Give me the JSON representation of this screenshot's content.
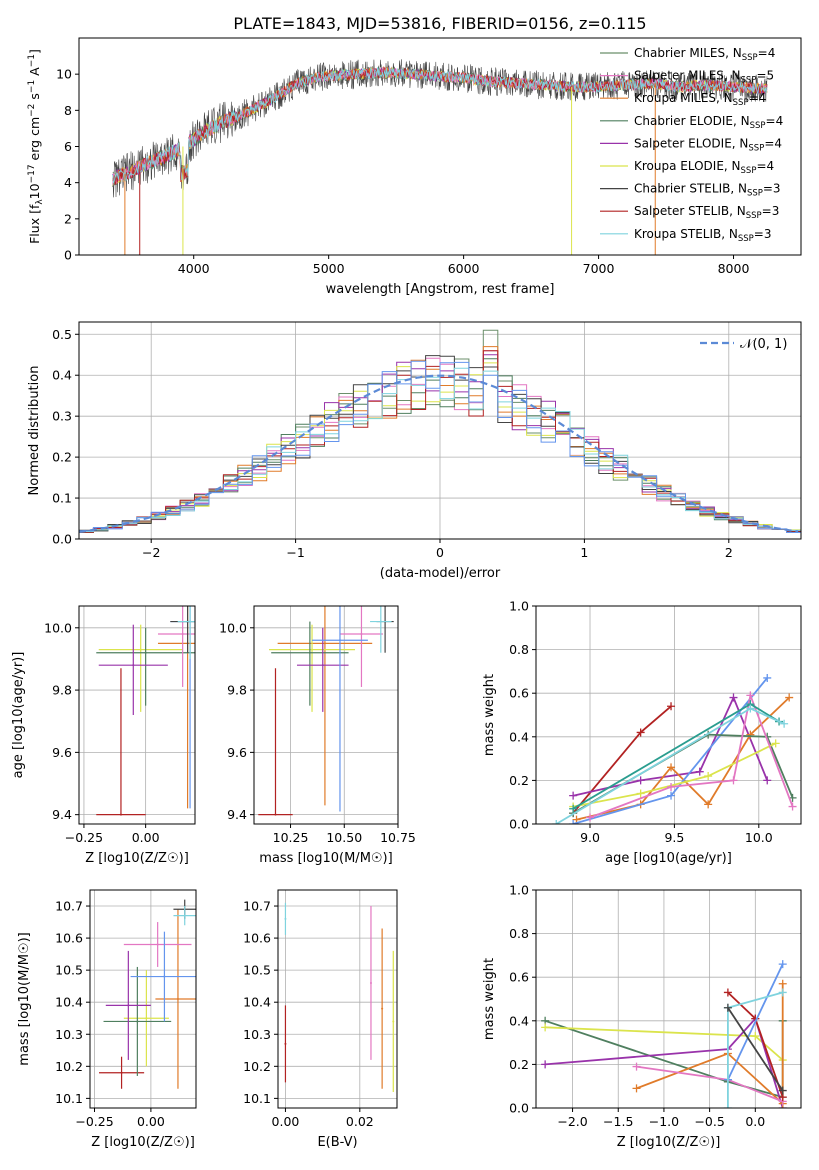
{
  "figure_title": "PLATE=1843, MJD=53816, FIBERID=0156, z=0.115",
  "model_colors": [
    "#6b8f6b",
    "#e377c2",
    "#e07b2a",
    "#4f7f5f",
    "#9933aa",
    "#dbe44c",
    "#444444",
    "#b22222",
    "#7fd3de"
  ],
  "chart_data": [
    {
      "panel": "spectrum",
      "type": "line",
      "title": "PLATE=1843, MJD=53816, FIBERID=0156, z=0.115",
      "xlabel": "wavelength [Angstrom, rest frame]",
      "ylabel": "Flux [f_λ10^-17 erg cm^-2 s^-1 A^-1]",
      "xlim": [
        3150,
        8500
      ],
      "ylim": [
        0,
        12
      ],
      "xticks": [
        4000,
        5000,
        6000,
        7000,
        8000
      ],
      "yticks": [
        0,
        2,
        4,
        6,
        8,
        10
      ],
      "grid": false,
      "legend_position": "right",
      "spectrum_envelope": {
        "x": [
          3400,
          3500,
          3600,
          3700,
          3800,
          3900,
          4000,
          4100,
          4200,
          4300,
          4400,
          4500,
          4600,
          4700,
          4800,
          4900,
          5000,
          5200,
          5400,
          5600,
          5800,
          6000,
          6200,
          6400,
          6600,
          6800,
          7000,
          7200,
          7400,
          7600,
          7800,
          8000,
          8250
        ],
        "y": [
          4.2,
          4.5,
          4.9,
          5.2,
          5.5,
          5.9,
          6.4,
          6.9,
          7.3,
          7.6,
          7.9,
          8.3,
          8.7,
          9.2,
          9.6,
          9.8,
          9.9,
          10.0,
          10.1,
          10.0,
          9.9,
          9.8,
          9.6,
          9.5,
          9.4,
          9.3,
          9.3,
          9.4,
          9.5,
          9.3,
          9.4,
          9.3,
          9.2
        ]
      },
      "x_range": [
        3400,
        8250
      ],
      "series": [
        {
          "name": "Chabrier MILES, N_SSP=4",
          "label_main": "Chabrier MILES, N",
          "label_sub": "SSP",
          "label_end": "=4",
          "color": "#6b8f6b"
        },
        {
          "name": "Salpeter MILES, N_SSP=5",
          "label_main": "Salpeter MILES, N",
          "label_sub": "SSP",
          "label_end": "=5",
          "color": "#e377c2"
        },
        {
          "name": "Kroupa MILES, N_SSP=4",
          "label_main": "Kroupa MILES, N",
          "label_sub": "SSP",
          "label_end": "=4",
          "color": "#e07b2a"
        },
        {
          "name": "Chabrier ELODIE, N_SSP=4",
          "label_main": "Chabrier ELODIE, N",
          "label_sub": "SSP",
          "label_end": "=4",
          "color": "#4f7f5f"
        },
        {
          "name": "Salpeter ELODIE, N_SSP=4",
          "label_main": "Salpeter ELODIE, N",
          "label_sub": "SSP",
          "label_end": "=4",
          "color": "#9933aa"
        },
        {
          "name": "Kroupa ELODIE, N_SSP=4",
          "label_main": "Kroupa ELODIE, N",
          "label_sub": "SSP",
          "label_end": "=4",
          "color": "#dbe44c"
        },
        {
          "name": "Chabrier STELIB, N_SSP=3",
          "label_main": "Chabrier STELIB, N",
          "label_sub": "SSP",
          "label_end": "=3",
          "color": "#444444"
        },
        {
          "name": "Salpeter STELIB, N_SSP=3",
          "label_main": "Salpeter STELIB, N",
          "label_sub": "SSP",
          "label_end": "=3",
          "color": "#b22222"
        },
        {
          "name": "Kroupa STELIB, N_SSP=3",
          "label_main": "Kroupa STELIB, N",
          "label_sub": "SSP",
          "label_end": "=3",
          "color": "#7fd3de"
        }
      ]
    },
    {
      "panel": "residuals",
      "type": "line",
      "xlabel": "(data-model)/error",
      "ylabel": "Normed distribution",
      "xlim": [
        -2.5,
        2.5
      ],
      "ylim": [
        0,
        0.53
      ],
      "xticks": [
        -2,
        -1,
        0,
        1,
        2
      ],
      "yticks": [
        0.0,
        0.1,
        0.2,
        0.3,
        0.4,
        0.5
      ],
      "grid": true,
      "legend_position": "top-right",
      "legend_label": "𝒩(0, 1)",
      "bin_width": 0.1,
      "reference_curve": {
        "name": "N(0,1)",
        "style": "dashed",
        "color": "#5b8ad6",
        "mean": 0,
        "sigma": 1
      },
      "histogram_series_colors": [
        "#6b8f6b",
        "#e377c2",
        "#e07b2a",
        "#4f7f5f",
        "#9933aa",
        "#dbe44c",
        "#444444",
        "#b22222",
        "#7fd3de",
        "#6495ed"
      ],
      "peak_values": [
        0.51,
        0.46,
        0.47,
        0.44,
        0.45,
        0.43,
        0.42,
        0.46,
        0.41,
        0.4
      ]
    },
    {
      "panel": "Z_vs_age",
      "type": "scatter",
      "xlabel": "Z [log10(Z/Z☉)]",
      "ylabel": "age [log10(age/yr)]",
      "xlim": [
        -0.27,
        0.2
      ],
      "ylim": [
        9.37,
        10.07
      ],
      "xticks": [
        -0.25,
        0.0
      ],
      "yticks": [
        9.4,
        9.6,
        9.8,
        10.0
      ],
      "grid": true,
      "points": [
        {
          "x": -0.1,
          "y": 9.4,
          "xerr": 0.1,
          "yerr_low": 0.0,
          "yerr_high": 0.47,
          "color": "#b22222"
        },
        {
          "x": 0.17,
          "y": 9.95,
          "xerr": 0.12,
          "yerr_low": 0.53,
          "yerr_high": 0.12,
          "color": "#e07b2a"
        },
        {
          "x": -0.02,
          "y": 9.93,
          "xerr": 0.17,
          "yerr_low": 0.2,
          "yerr_high": 0.08,
          "color": "#dbe44c"
        },
        {
          "x": 0.0,
          "y": 9.92,
          "xerr": 0.2,
          "yerr_low": 0.17,
          "yerr_high": 0.08,
          "color": "#4f7f5f"
        },
        {
          "x": -0.05,
          "y": 9.88,
          "xerr": 0.14,
          "yerr_low": 0.16,
          "yerr_high": 0.13,
          "color": "#9933aa"
        },
        {
          "x": 0.15,
          "y": 9.98,
          "xerr": 0.1,
          "yerr_low": 0.17,
          "yerr_high": 0.12,
          "color": "#e377c2"
        },
        {
          "x": 0.18,
          "y": 10.02,
          "xerr": 0.08,
          "yerr_low": 0.6,
          "yerr_high": 0.08,
          "color": "#6495ed"
        },
        {
          "x": 0.17,
          "y": 10.02,
          "xerr": 0.07,
          "yerr_low": 0.1,
          "yerr_high": 0.05,
          "color": "#444444"
        },
        {
          "x": 0.18,
          "y": 10.02,
          "xerr": 0.05,
          "yerr_low": 0.12,
          "yerr_high": 0.05,
          "color": "#7fd3de"
        }
      ]
    },
    {
      "panel": "mass_vs_age",
      "type": "scatter",
      "xlabel": "mass [log10(M/M☉)]",
      "xlim": [
        10.08,
        10.75
      ],
      "ylim": [
        9.37,
        10.07
      ],
      "xticks": [
        10.25,
        10.5,
        10.75
      ],
      "yticks": [
        9.4,
        9.6,
        9.8,
        10.0
      ],
      "grid": true,
      "points": [
        {
          "x": 10.18,
          "y": 9.4,
          "xerr": 0.08,
          "yerr_low": 0.0,
          "yerr_high": 0.47,
          "color": "#b22222"
        },
        {
          "x": 10.41,
          "y": 9.95,
          "xerr": 0.22,
          "yerr_low": 0.52,
          "yerr_high": 0.12,
          "color": "#e07b2a"
        },
        {
          "x": 10.35,
          "y": 9.93,
          "xerr": 0.2,
          "yerr_low": 0.2,
          "yerr_high": 0.08,
          "color": "#dbe44c"
        },
        {
          "x": 10.34,
          "y": 9.92,
          "xerr": 0.18,
          "yerr_low": 0.17,
          "yerr_high": 0.1,
          "color": "#4f7f5f"
        },
        {
          "x": 10.4,
          "y": 9.88,
          "xerr": 0.12,
          "yerr_low": 0.15,
          "yerr_high": 0.12,
          "color": "#9933aa"
        },
        {
          "x": 10.58,
          "y": 9.98,
          "xerr": 0.1,
          "yerr_low": 0.17,
          "yerr_high": 0.12,
          "color": "#e377c2"
        },
        {
          "x": 10.48,
          "y": 9.96,
          "xerr": 0.13,
          "yerr_low": 0.55,
          "yerr_high": 0.12,
          "color": "#6495ed"
        },
        {
          "x": 10.69,
          "y": 10.02,
          "xerr": 0.04,
          "yerr_low": 0.1,
          "yerr_high": 0.05,
          "color": "#444444"
        },
        {
          "x": 10.67,
          "y": 10.02,
          "xerr": 0.05,
          "yerr_low": 0.1,
          "yerr_high": 0.05,
          "color": "#7fd3de"
        }
      ]
    },
    {
      "panel": "age_vs_weight",
      "type": "line",
      "xlabel": "age [log10(age/yr)]",
      "ylabel": "mass weight",
      "xlim": [
        8.68,
        10.25
      ],
      "ylim": [
        0,
        1
      ],
      "xticks": [
        9.0,
        9.5,
        10.0
      ],
      "yticks": [
        0.0,
        0.2,
        0.4,
        0.6,
        0.8,
        1.0
      ],
      "grid": true,
      "series": [
        {
          "color": "#b22222",
          "x": [
            8.9,
            9.3,
            9.48
          ],
          "y": [
            0.05,
            0.42,
            0.54
          ]
        },
        {
          "color": "#9933aa",
          "x": [
            8.9,
            9.3,
            9.65,
            9.85,
            10.05
          ],
          "y": [
            0.13,
            0.2,
            0.24,
            0.58,
            0.2
          ]
        },
        {
          "color": "#e07b2a",
          "x": [
            8.92,
            9.3,
            9.48,
            9.7,
            9.95,
            10.18
          ],
          "y": [
            0.02,
            0.09,
            0.26,
            0.09,
            0.41,
            0.58
          ]
        },
        {
          "color": "#6495ed",
          "x": [
            8.9,
            9.48,
            10.05
          ],
          "y": [
            0.0,
            0.13,
            0.67
          ]
        },
        {
          "color": "#4f7f5f",
          "x": [
            8.9,
            9.7,
            10.05,
            10.2
          ],
          "y": [
            0.05,
            0.41,
            0.4,
            0.12
          ]
        },
        {
          "color": "#dbe44c",
          "x": [
            8.9,
            9.3,
            9.7,
            10.1
          ],
          "y": [
            0.08,
            0.14,
            0.22,
            0.37
          ]
        },
        {
          "color": "#e377c2",
          "x": [
            9.0,
            9.48,
            9.85,
            9.95,
            10.2
          ],
          "y": [
            0.03,
            0.17,
            0.2,
            0.59,
            0.08
          ]
        },
        {
          "color": "#2a9d8f",
          "x": [
            8.9,
            9.95,
            10.12
          ],
          "y": [
            0.07,
            0.55,
            0.47
          ]
        },
        {
          "color": "#7fd3de",
          "x": [
            8.8,
            9.95,
            10.15
          ],
          "y": [
            0.0,
            0.53,
            0.46
          ]
        }
      ]
    },
    {
      "panel": "Z_vs_mass",
      "type": "scatter",
      "xlabel": "Z [log10(Z/Z☉)]",
      "ylabel": "mass [log10(M/M☉)]",
      "xlim": [
        -0.27,
        0.2
      ],
      "ylim": [
        10.07,
        10.75
      ],
      "xticks": [
        -0.25,
        0.0
      ],
      "yticks": [
        10.1,
        10.2,
        10.3,
        10.4,
        10.5,
        10.6,
        10.7
      ],
      "grid": true,
      "points": [
        {
          "x": -0.13,
          "y": 10.18,
          "xerr": 0.1,
          "yerr": 0.05,
          "color": "#b22222"
        },
        {
          "x": 0.12,
          "y": 10.41,
          "xerr": 0.1,
          "yerr": 0.28,
          "color": "#e07b2a"
        },
        {
          "x": -0.02,
          "y": 10.35,
          "xerr": 0.1,
          "yerr": 0.15,
          "color": "#dbe44c"
        },
        {
          "x": -0.06,
          "y": 10.34,
          "xerr": 0.15,
          "yerr": 0.17,
          "color": "#4f7f5f"
        },
        {
          "x": -0.1,
          "y": 10.39,
          "xerr": 0.1,
          "yerr": 0.17,
          "color": "#9933aa"
        },
        {
          "x": 0.03,
          "y": 10.58,
          "xerr": 0.15,
          "yerr": 0.07,
          "color": "#e377c2"
        },
        {
          "x": 0.06,
          "y": 10.48,
          "xerr": 0.15,
          "yerr": 0.14,
          "color": "#6495ed"
        },
        {
          "x": 0.15,
          "y": 10.69,
          "xerr": 0.05,
          "yerr": 0.03,
          "color": "#444444"
        },
        {
          "x": 0.15,
          "y": 10.67,
          "xerr": 0.05,
          "yerr": 0.03,
          "color": "#7fd3de"
        }
      ]
    },
    {
      "panel": "ebv_vs_mass",
      "type": "scatter",
      "xlabel": "E(B-V)",
      "xlim": [
        -0.002,
        0.03
      ],
      "ylim": [
        10.07,
        10.75
      ],
      "xticks": [
        0.0,
        0.02
      ],
      "yticks": [
        10.1,
        10.2,
        10.3,
        10.4,
        10.5,
        10.6,
        10.7
      ],
      "grid": true,
      "points": [
        {
          "x": 0.0,
          "y": 10.27,
          "yerr": 0.12,
          "color": "#b22222"
        },
        {
          "x": 0.0,
          "y": 10.66,
          "yerr": 0.05,
          "color": "#7fd3de"
        },
        {
          "x": 0.026,
          "y": 10.38,
          "yerr": 0.25,
          "color": "#e07b2a"
        },
        {
          "x": 0.023,
          "y": 10.46,
          "yerr": 0.24,
          "color": "#e377c2"
        },
        {
          "x": 0.029,
          "y": 10.34,
          "yerr": 0.22,
          "color": "#dbe44c"
        }
      ]
    },
    {
      "panel": "Z_vs_weight",
      "type": "line",
      "xlabel": "Z [log10(Z/Z☉)]",
      "ylabel": "mass weight",
      "xlim": [
        -2.4,
        0.5
      ],
      "ylim": [
        0,
        1
      ],
      "xticks": [
        -2.0,
        -1.5,
        -1.0,
        -0.5,
        0.0
      ],
      "yticks": [
        0.0,
        0.2,
        0.4,
        0.6,
        0.8,
        1.0
      ],
      "grid": true,
      "series": [
        {
          "color": "#4f7f5f",
          "x": [
            -2.3,
            -0.3,
            0.3,
            0.3
          ],
          "y": [
            0.4,
            0.12,
            0.05,
            0.4
          ]
        },
        {
          "color": "#dbe44c",
          "x": [
            -2.3,
            0.0,
            0.3
          ],
          "y": [
            0.37,
            0.33,
            0.22
          ]
        },
        {
          "color": "#9933aa",
          "x": [
            -2.3,
            -0.3,
            0.0,
            0.3
          ],
          "y": [
            0.2,
            0.27,
            0.41,
            0.0
          ]
        },
        {
          "color": "#e07b2a",
          "x": [
            -1.3,
            -0.3,
            0.3,
            0.3
          ],
          "y": [
            0.09,
            0.25,
            0.02,
            0.57
          ]
        },
        {
          "color": "#e377c2",
          "x": [
            -1.3,
            -0.3,
            0.3
          ],
          "y": [
            0.19,
            0.13,
            0.03
          ]
        },
        {
          "color": "#b22222",
          "x": [
            -0.3,
            0.0,
            0.3
          ],
          "y": [
            0.53,
            0.41,
            0.05
          ]
        },
        {
          "color": "#6495ed",
          "x": [
            -0.3,
            0.3
          ],
          "y": [
            0.13,
            0.66
          ]
        },
        {
          "color": "#7fd3de",
          "x": [
            -0.3,
            -0.3,
            0.3
          ],
          "y": [
            0.0,
            0.46,
            0.53
          ]
        },
        {
          "color": "#444444",
          "x": [
            -0.3,
            0.3
          ],
          "y": [
            0.46,
            0.08
          ]
        }
      ]
    }
  ]
}
